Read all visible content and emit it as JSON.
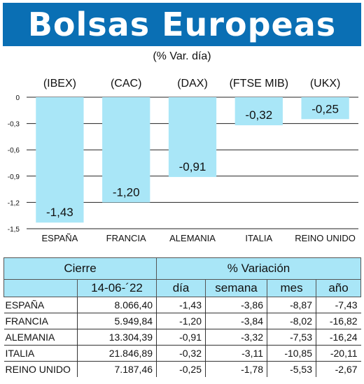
{
  "banner": {
    "title": "Bolsas Europeas"
  },
  "subtitle": "(% Var. día)",
  "chart_data": {
    "type": "bar",
    "indices": [
      "(IBEX)",
      "(CAC)",
      "(DAX)",
      "(FTSE MIB)",
      "(UKX)"
    ],
    "categories": [
      "ESPAÑA",
      "FRANCIA",
      "ALEMANIA",
      "ITALIA",
      "REINO UNIDO"
    ],
    "values": [
      -1.43,
      -1.2,
      -0.91,
      -0.32,
      -0.25
    ],
    "value_labels": [
      "-1,43",
      "-1,20",
      "-0,91",
      "-0,32",
      "-0,25"
    ],
    "yticks": [
      0,
      -0.3,
      -0.6,
      -0.9,
      -1.2,
      -1.5
    ],
    "ytick_labels": [
      "0",
      "-0,3",
      "-0,6",
      "-0,9",
      "-1,2",
      "-1,5"
    ],
    "ylim": [
      -1.5,
      0
    ],
    "grid": true,
    "bar_color": "#a9e6f7"
  },
  "table": {
    "header_cierre": "Cierre",
    "header_variacion": "% Variación",
    "date": "14-06-´22",
    "cols": [
      "día",
      "semana",
      "mes",
      "año"
    ],
    "rows": [
      {
        "name": "ESPAÑA",
        "cierre": "8.066,40",
        "dia": "-1,43",
        "semana": "-3,86",
        "mes": "-8,87",
        "ano": "-7,43"
      },
      {
        "name": "FRANCIA",
        "cierre": "5.949,84",
        "dia": "-1,20",
        "semana": "-3,84",
        "mes": "-8,02",
        "ano": "-16,82"
      },
      {
        "name": "ALEMANIA",
        "cierre": "13.304,39",
        "dia": "-0,91",
        "semana": "-3,32",
        "mes": "-7,53",
        "ano": "-16,24"
      },
      {
        "name": "ITALIA",
        "cierre": "21.846,89",
        "dia": "-0,32",
        "semana": "-3,11",
        "mes": "-10,85",
        "ano": "-20,11"
      },
      {
        "name": "REINO UNIDO",
        "cierre": "7.187,46",
        "dia": "-0,25",
        "semana": "-1,78",
        "mes": "-5,53",
        "ano": "-2,67"
      }
    ]
  }
}
